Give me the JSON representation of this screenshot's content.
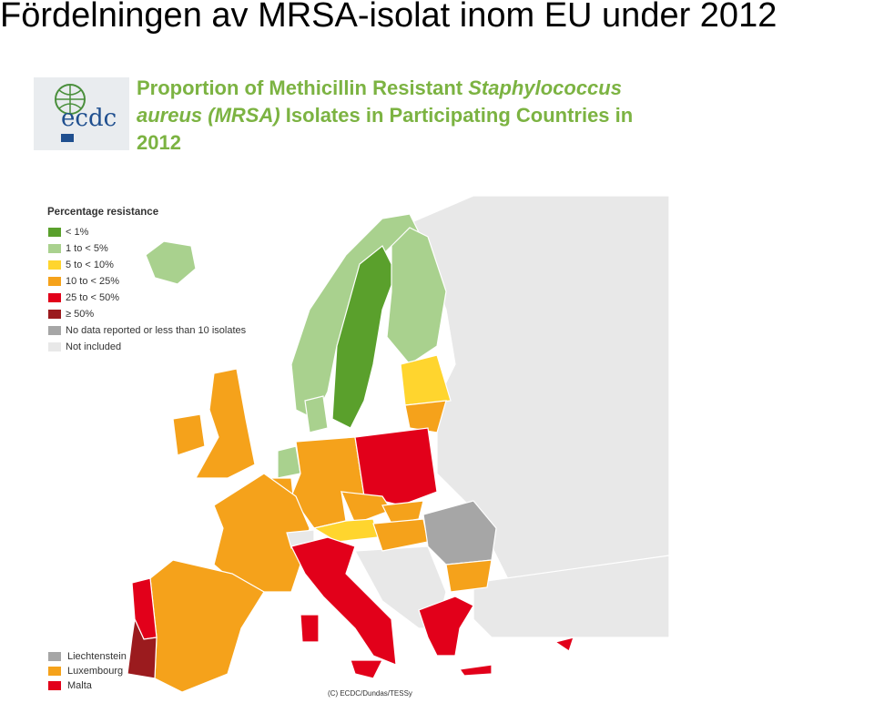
{
  "title": "Fördelningen av MRSA-isolat inom EU under 2012",
  "logo": "ecdc",
  "header": {
    "part1": "Proportion of Methicillin Resistant ",
    "part2": "Staphylococcus",
    "part3": "aureus (MRSA)",
    "part4": " Isolates in Participating Countries in",
    "part5": "2012"
  },
  "legend": {
    "title": "Percentage resistance",
    "items": [
      {
        "label": "< 1%",
        "color": "#5aa02c"
      },
      {
        "label": "1 to < 5%",
        "color": "#a9d18e"
      },
      {
        "label": "5 to < 10%",
        "color": "#ffd52e"
      },
      {
        "label": "10 to < 25%",
        "color": "#f5a21b"
      },
      {
        "label": "25 to < 50%",
        "color": "#e2001a"
      },
      {
        "label": "≥ 50%",
        "color": "#9b1b1e"
      },
      {
        "label": "No data reported or less than 10 isolates",
        "color": "#a6a6a6"
      },
      {
        "label": "Not included",
        "color": "#e8e8e8"
      }
    ]
  },
  "small_states": [
    {
      "label": "Liechtenstein",
      "color": "#a6a6a6"
    },
    {
      "label": "Luxembourg",
      "color": "#f5a21b"
    },
    {
      "label": "Malta",
      "color": "#e2001a"
    }
  ],
  "credit": "(C) ECDC/Dundas/TESSy"
}
